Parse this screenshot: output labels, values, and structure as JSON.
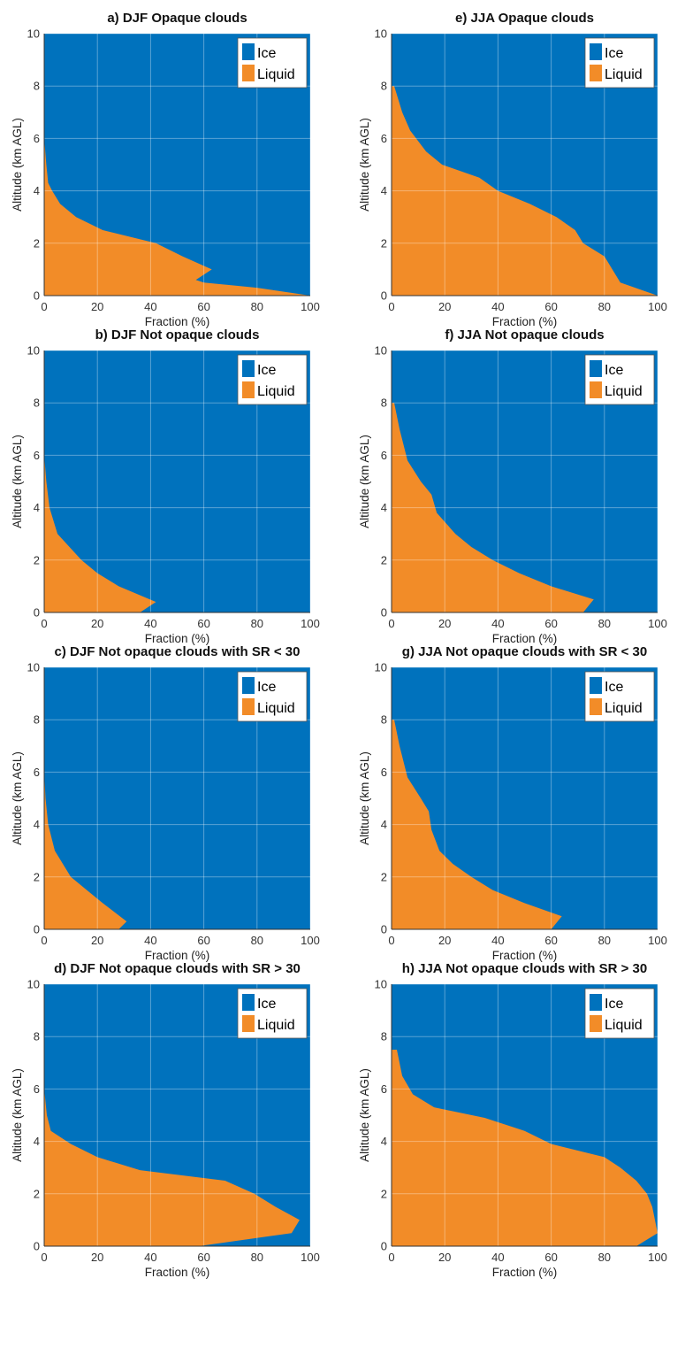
{
  "colors": {
    "ice": "#0072BD",
    "liquid": "#F28C28"
  },
  "chart_data": [
    {
      "type": "area",
      "title": "a) DJF Opaque clouds",
      "xlabel": "Fraction (%)",
      "ylabel": "Altitude (km AGL)",
      "xlim": [
        0,
        100
      ],
      "ylim": [
        0,
        10
      ],
      "xticks": [
        "0",
        "20",
        "40",
        "60",
        "80",
        "100"
      ],
      "yticks": [
        "0",
        "2",
        "4",
        "6",
        "8",
        "10"
      ],
      "grid": true,
      "legend_position": "top-right",
      "series": [
        {
          "name": "Ice",
          "fill": "remainder"
        },
        {
          "name": "Liquid",
          "altitude_km": [
            0,
            0.3,
            0.5,
            0.6,
            1.0,
            1.5,
            2.0,
            2.5,
            3.0,
            3.5,
            4.0,
            4.3,
            5.0,
            6.0
          ],
          "fraction_pct": [
            100,
            80,
            60,
            57,
            63,
            52,
            42,
            22,
            12,
            6,
            3,
            1.5,
            0.8,
            0
          ]
        }
      ]
    },
    {
      "type": "area",
      "title": "b) DJF Not opaque clouds",
      "xlabel": "Fraction (%)",
      "ylabel": "Altitude (km AGL)",
      "xlim": [
        0,
        100
      ],
      "ylim": [
        0,
        10
      ],
      "xticks": [
        "0",
        "20",
        "40",
        "60",
        "80",
        "100"
      ],
      "yticks": [
        "0",
        "2",
        "4",
        "6",
        "8",
        "10"
      ],
      "grid": true,
      "legend_position": "top-right",
      "series": [
        {
          "name": "Ice",
          "fill": "remainder"
        },
        {
          "name": "Liquid",
          "altitude_km": [
            0,
            0.4,
            1.0,
            1.5,
            2.0,
            3.0,
            4.0,
            5.0,
            6.0
          ],
          "fraction_pct": [
            36,
            42,
            28,
            20,
            14,
            5,
            2,
            0.8,
            0
          ]
        }
      ]
    },
    {
      "type": "area",
      "title": "c) DJF Not opaque clouds with SR < 30",
      "xlabel": "Fraction (%)",
      "ylabel": "Altitude (km AGL)",
      "xlim": [
        0,
        100
      ],
      "ylim": [
        0,
        10
      ],
      "xticks": [
        "0",
        "20",
        "40",
        "60",
        "80",
        "100"
      ],
      "yticks": [
        "0",
        "2",
        "4",
        "6",
        "8",
        "10"
      ],
      "grid": true,
      "legend_position": "top-right",
      "series": [
        {
          "name": "Ice",
          "fill": "remainder"
        },
        {
          "name": "Liquid",
          "altitude_km": [
            0,
            0.3,
            1.0,
            1.5,
            2.0,
            3.0,
            4.0,
            5.0,
            6.0
          ],
          "fraction_pct": [
            28,
            31,
            22,
            16,
            10,
            4,
            1.5,
            0.5,
            0
          ]
        }
      ]
    },
    {
      "type": "area",
      "title": "d) DJF Not opaque clouds with SR > 30",
      "xlabel": "Fraction (%)",
      "ylabel": "Altitude (km AGL)",
      "xlim": [
        0,
        100
      ],
      "ylim": [
        0,
        10
      ],
      "xticks": [
        "0",
        "20",
        "40",
        "60",
        "80",
        "100"
      ],
      "yticks": [
        "0",
        "2",
        "4",
        "6",
        "8",
        "10"
      ],
      "grid": true,
      "legend_position": "top-right",
      "series": [
        {
          "name": "Ice",
          "fill": "remainder"
        },
        {
          "name": "Liquid",
          "altitude_km": [
            0,
            0.5,
            1.0,
            1.5,
            2.0,
            2.5,
            2.9,
            3.4,
            3.9,
            4.4,
            5.0,
            6.0
          ],
          "fraction_pct": [
            58,
            93,
            96,
            87,
            79,
            68,
            36,
            20,
            10,
            2.5,
            1.0,
            0
          ]
        }
      ]
    },
    {
      "type": "area",
      "title": "e) JJA Opaque clouds",
      "xlabel": "Fraction (%)",
      "ylabel": "Altitude (km AGL)",
      "xlim": [
        0,
        100
      ],
      "ylim": [
        0,
        10
      ],
      "xticks": [
        "0",
        "20",
        "40",
        "60",
        "80",
        "100"
      ],
      "yticks": [
        "0",
        "2",
        "4",
        "6",
        "8",
        "10"
      ],
      "grid": true,
      "legend_position": "top-right",
      "series": [
        {
          "name": "Ice",
          "fill": "remainder"
        },
        {
          "name": "Liquid",
          "altitude_km": [
            0,
            0.5,
            1.5,
            2.0,
            2.5,
            3.0,
            3.5,
            4.0,
            4.5,
            5.0,
            5.5,
            6.3,
            7.0,
            8.0
          ],
          "fraction_pct": [
            100,
            86,
            80,
            72,
            69,
            62,
            52,
            40,
            33,
            19,
            13,
            7,
            4,
            1
          ]
        }
      ]
    },
    {
      "type": "area",
      "title": "f) JJA Not opaque clouds",
      "xlabel": "Fraction (%)",
      "ylabel": "Altitude (km AGL)",
      "xlim": [
        0,
        100
      ],
      "ylim": [
        0,
        10
      ],
      "xticks": [
        "0",
        "20",
        "40",
        "60",
        "80",
        "100"
      ],
      "yticks": [
        "0",
        "2",
        "4",
        "6",
        "8",
        "10"
      ],
      "grid": true,
      "legend_position": "top-right",
      "series": [
        {
          "name": "Ice",
          "fill": "remainder"
        },
        {
          "name": "Liquid",
          "altitude_km": [
            0,
            0.5,
            1.0,
            1.5,
            2.0,
            2.5,
            3.0,
            3.8,
            4.5,
            5.0,
            5.8,
            7.0,
            8.0
          ],
          "fraction_pct": [
            72,
            76,
            60,
            48,
            38,
            30,
            24,
            17,
            15,
            11,
            6,
            3,
            1
          ]
        }
      ]
    },
    {
      "type": "area",
      "title": "g) JJA Not opaque clouds with SR < 30",
      "xlabel": "Fraction (%)",
      "ylabel": "Altitude (km AGL)",
      "xlim": [
        0,
        100
      ],
      "ylim": [
        0,
        10
      ],
      "xticks": [
        "0",
        "20",
        "40",
        "60",
        "80",
        "100"
      ],
      "yticks": [
        "0",
        "2",
        "4",
        "6",
        "8",
        "10"
      ],
      "grid": true,
      "legend_position": "top-right",
      "series": [
        {
          "name": "Ice",
          "fill": "remainder"
        },
        {
          "name": "Liquid",
          "altitude_km": [
            0,
            0.5,
            1.0,
            1.5,
            2.0,
            2.5,
            3.0,
            3.8,
            4.5,
            5.0,
            5.8,
            7.0,
            8.0
          ],
          "fraction_pct": [
            60,
            64,
            50,
            38,
            30,
            23,
            18,
            15,
            14,
            11,
            6,
            3,
            1
          ]
        }
      ]
    },
    {
      "type": "area",
      "title": "h) JJA Not opaque clouds with SR > 30",
      "xlabel": "Fraction (%)",
      "ylabel": "Altitude (km AGL)",
      "xlim": [
        0,
        100
      ],
      "ylim": [
        0,
        10
      ],
      "xticks": [
        "0",
        "20",
        "40",
        "60",
        "80",
        "100"
      ],
      "yticks": [
        "0",
        "2",
        "4",
        "6",
        "8",
        "10"
      ],
      "grid": true,
      "legend_position": "top-right",
      "series": [
        {
          "name": "Ice",
          "fill": "remainder"
        },
        {
          "name": "Liquid",
          "altitude_km": [
            0,
            0.5,
            1.5,
            2.0,
            2.5,
            3.0,
            3.4,
            3.9,
            4.4,
            4.9,
            5.3,
            5.8,
            6.5,
            7.5
          ],
          "fraction_pct": [
            92,
            100,
            98,
            96,
            92,
            86,
            80,
            60,
            50,
            35,
            16,
            8,
            4,
            2
          ]
        }
      ]
    }
  ]
}
